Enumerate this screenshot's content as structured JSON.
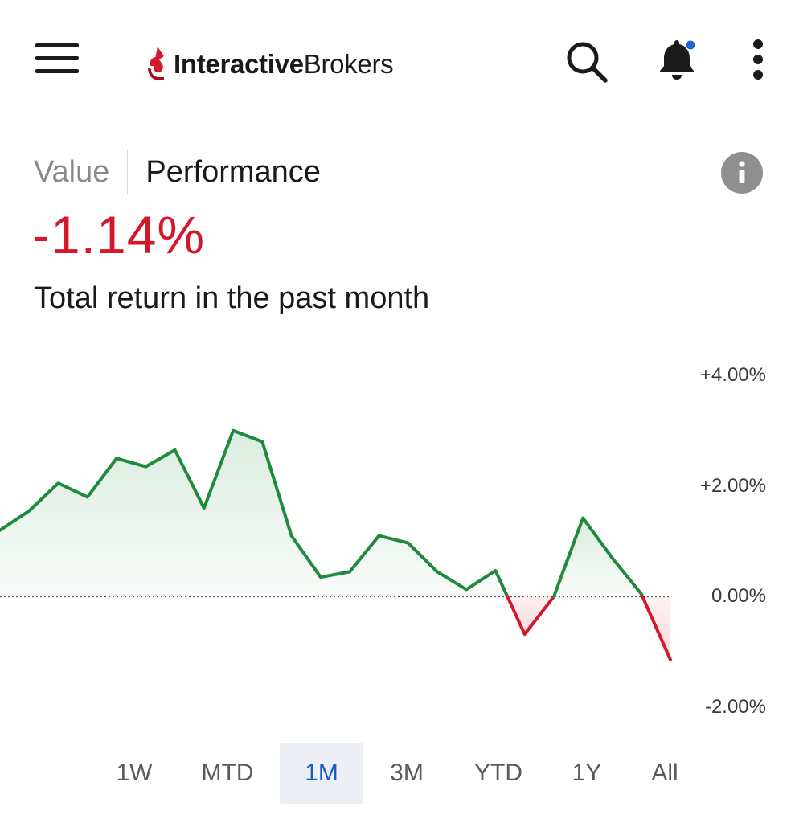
{
  "app": {
    "logo": {
      "bold": "Interactive",
      "light": "Brokers"
    },
    "icons": {
      "menu": "hamburger-menu-icon",
      "search": "search-icon",
      "notifications": "bell-icon",
      "more": "more-vertical-icon",
      "notification_dot_color": "#1f64d6"
    }
  },
  "view_tabs": {
    "value": "Value",
    "performance": "Performance",
    "active": "Performance"
  },
  "performance": {
    "total_return": "-1.14%",
    "caption": "Total return in the past month",
    "positive_color": "#1f8a3c",
    "negative_color": "#d3182b"
  },
  "chart_data": {
    "type": "area",
    "baseline": 0,
    "ylim": [
      -2,
      4
    ],
    "y_ticks": [
      "+4.00%",
      "+2.00%",
      "0.00%",
      "-2.00%"
    ],
    "y_tick_values": [
      4,
      2,
      0,
      -2
    ],
    "series": [
      {
        "values": [
          1.2,
          1.55,
          2.05,
          1.8,
          2.5,
          2.35,
          2.65,
          1.6,
          3.0,
          2.8,
          1.1,
          0.35,
          0.45,
          1.1,
          0.97,
          0.45,
          0.13,
          0.47,
          -0.68,
          0.0,
          1.42,
          0.7,
          0.05,
          -1.14
        ]
      }
    ],
    "x_pixel_positions_note_removed": true
  },
  "range_tabs": {
    "items": [
      "1W",
      "MTD",
      "1M",
      "3M",
      "YTD",
      "1Y",
      "All"
    ],
    "selected": "1M"
  }
}
